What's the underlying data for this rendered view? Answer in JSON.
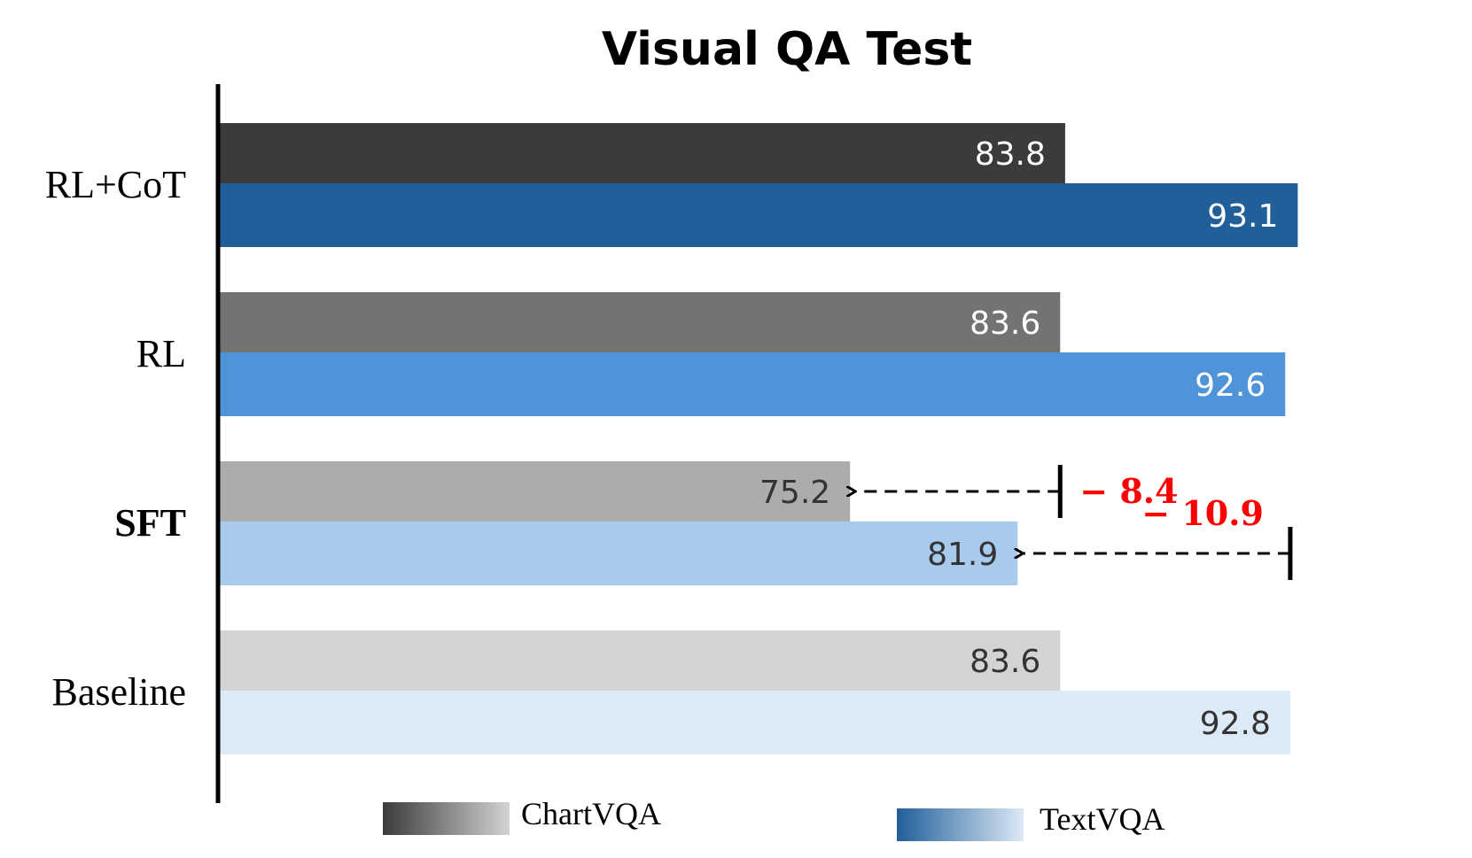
{
  "chart_data": {
    "type": "bar",
    "orientation": "horizontal",
    "title": "Visual QA Test",
    "categories": [
      "RL+CoT",
      "RL",
      "SFT",
      "Baseline"
    ],
    "bold_categories": [
      "SFT"
    ],
    "series": [
      {
        "name": "ChartVQA",
        "values": [
          83.8,
          83.6,
          75.2,
          83.6
        ],
        "colors": [
          "#3b3b3b",
          "#737373",
          "#acacac",
          "#d3d3d3"
        ],
        "label_colors": [
          "#ffffff",
          "#ffffff",
          "#333333",
          "#333333"
        ]
      },
      {
        "name": "TextVQA",
        "values": [
          93.1,
          92.6,
          81.9,
          92.8
        ],
        "colors": [
          "#215f9a",
          "#4f94d8",
          "#a8caec",
          "#dce9f6"
        ],
        "label_colors": [
          "#ffffff",
          "#ffffff",
          "#333333",
          "#333333"
        ]
      }
    ],
    "xlim": [
      50,
      95
    ],
    "grid": false,
    "legend_position": "bottom",
    "legend_gradients": {
      "ChartVQA": [
        "#3b3b3b",
        "#d3d3d3"
      ],
      "TextVQA": [
        "#215f9a",
        "#dce9f6"
      ]
    },
    "annotations": [
      {
        "category": "SFT",
        "series": "ChartVQA",
        "from": 83.6,
        "to": 75.2,
        "label": "− 8.4",
        "color": "#ff0000"
      },
      {
        "category": "SFT",
        "series": "TextVQA",
        "from": 92.8,
        "to": 81.9,
        "label": "− 10.9",
        "color": "#ff0000"
      }
    ]
  }
}
